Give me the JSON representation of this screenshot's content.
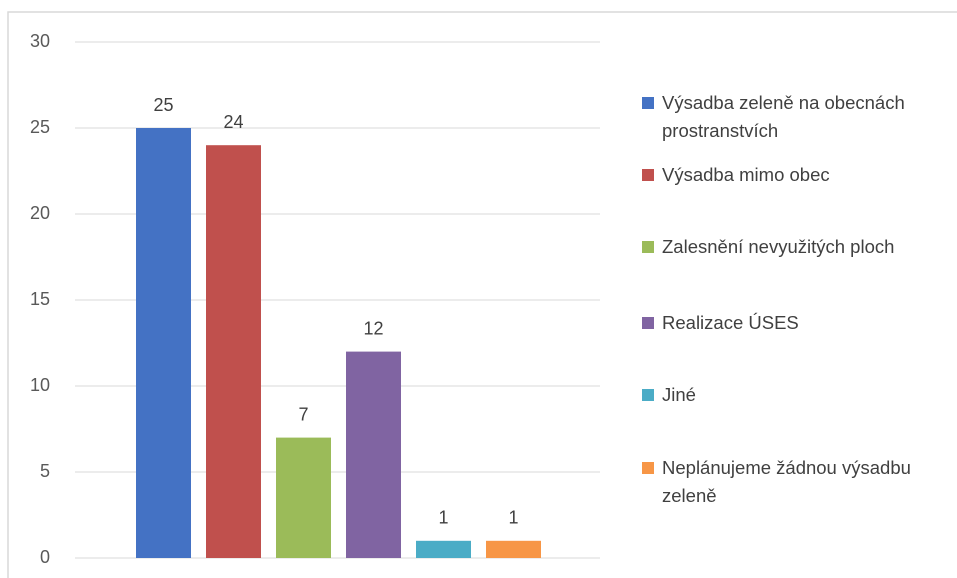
{
  "chart_data": {
    "type": "bar",
    "series": [
      {
        "name": "Výsadba zeleně na obecnách prostranstvích",
        "color": "#4472c4",
        "values": [
          25
        ]
      },
      {
        "name": "Výsadba mimo obec",
        "color": "#c0504d",
        "values": [
          24
        ]
      },
      {
        "name": "Zalesnění nevyužitých ploch",
        "color": "#9bbb59",
        "values": [
          7
        ]
      },
      {
        "name": "Realizace ÚSES",
        "color": "#8064a2",
        "values": [
          12
        ]
      },
      {
        "name": "Jiné",
        "color": "#4bacc6",
        "values": [
          1
        ]
      },
      {
        "name": "Neplánujeme žádnou výsadbu zeleně",
        "color": "#f79646",
        "values": [
          1
        ]
      }
    ],
    "ylim": [
      0,
      30
    ],
    "yticks": [
      0,
      5,
      10,
      15,
      20,
      25,
      30
    ],
    "grid": true,
    "legend": "right"
  }
}
